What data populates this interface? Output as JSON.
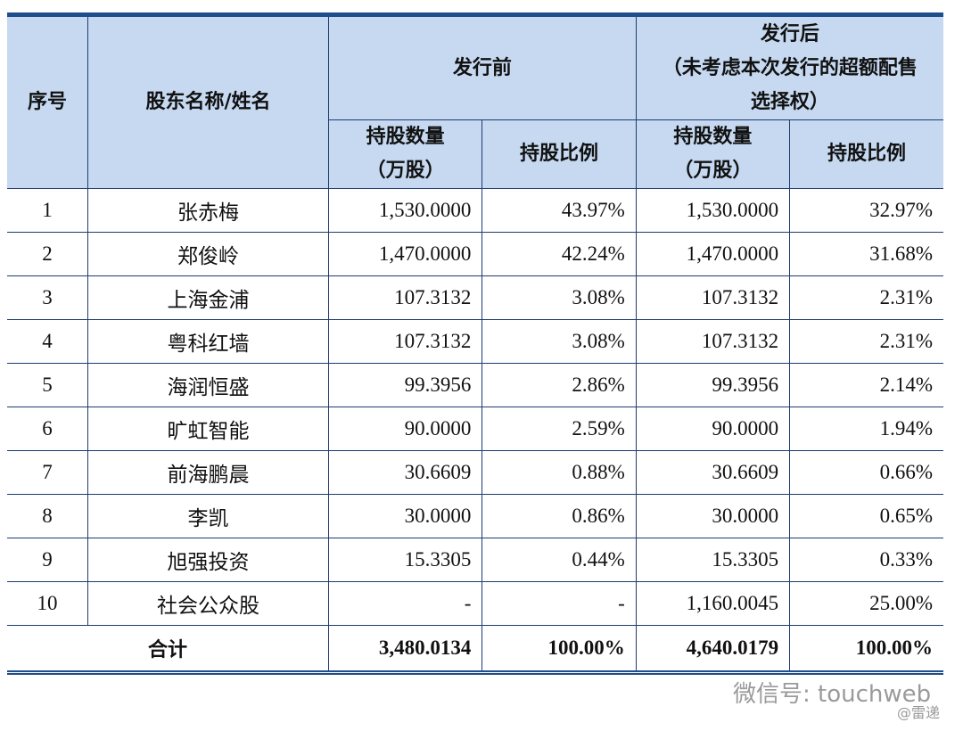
{
  "header": {
    "seq": "序号",
    "name": "股东名称/姓名",
    "before": "发行前",
    "after_title": "发行后",
    "after_note": "（未考虑本次发行的超额配售选择权）",
    "shares": "持股数量（万股）",
    "pct": "持股比例",
    "shares_after": "持股数量（万股）",
    "pct_after": "持股比例"
  },
  "table": {
    "rows": [
      [
        "1",
        "张赤梅",
        "1,530.0000",
        "43.97%",
        "1,530.0000",
        "32.97%"
      ],
      [
        "2",
        "郑俊岭",
        "1,470.0000",
        "42.24%",
        "1,470.0000",
        "31.68%"
      ],
      [
        "3",
        "上海金浦",
        "107.3132",
        "3.08%",
        "107.3132",
        "2.31%"
      ],
      [
        "4",
        "粤科红墙",
        "107.3132",
        "3.08%",
        "107.3132",
        "2.31%"
      ],
      [
        "5",
        "海润恒盛",
        "99.3956",
        "2.86%",
        "99.3956",
        "2.14%"
      ],
      [
        "6",
        "旷虹智能",
        "90.0000",
        "2.59%",
        "90.0000",
        "1.94%"
      ],
      [
        "7",
        "前海鹏晨",
        "30.6609",
        "0.88%",
        "30.6609",
        "0.66%"
      ],
      [
        "8",
        "李凯",
        "30.0000",
        "0.86%",
        "30.0000",
        "0.65%"
      ],
      [
        "9",
        "旭强投资",
        "15.3305",
        "0.44%",
        "15.3305",
        "0.33%"
      ],
      [
        "10",
        "社会公众股",
        "-",
        "-",
        "1,160.0045",
        "25.00%"
      ]
    ],
    "total": {
      "label": "合计",
      "values": [
        "3,480.0134",
        "100.00%",
        "4,640.0179",
        "100.00%"
      ]
    }
  },
  "watermark": {
    "account": "微信号: touchweb",
    "source": "@雷递"
  }
}
